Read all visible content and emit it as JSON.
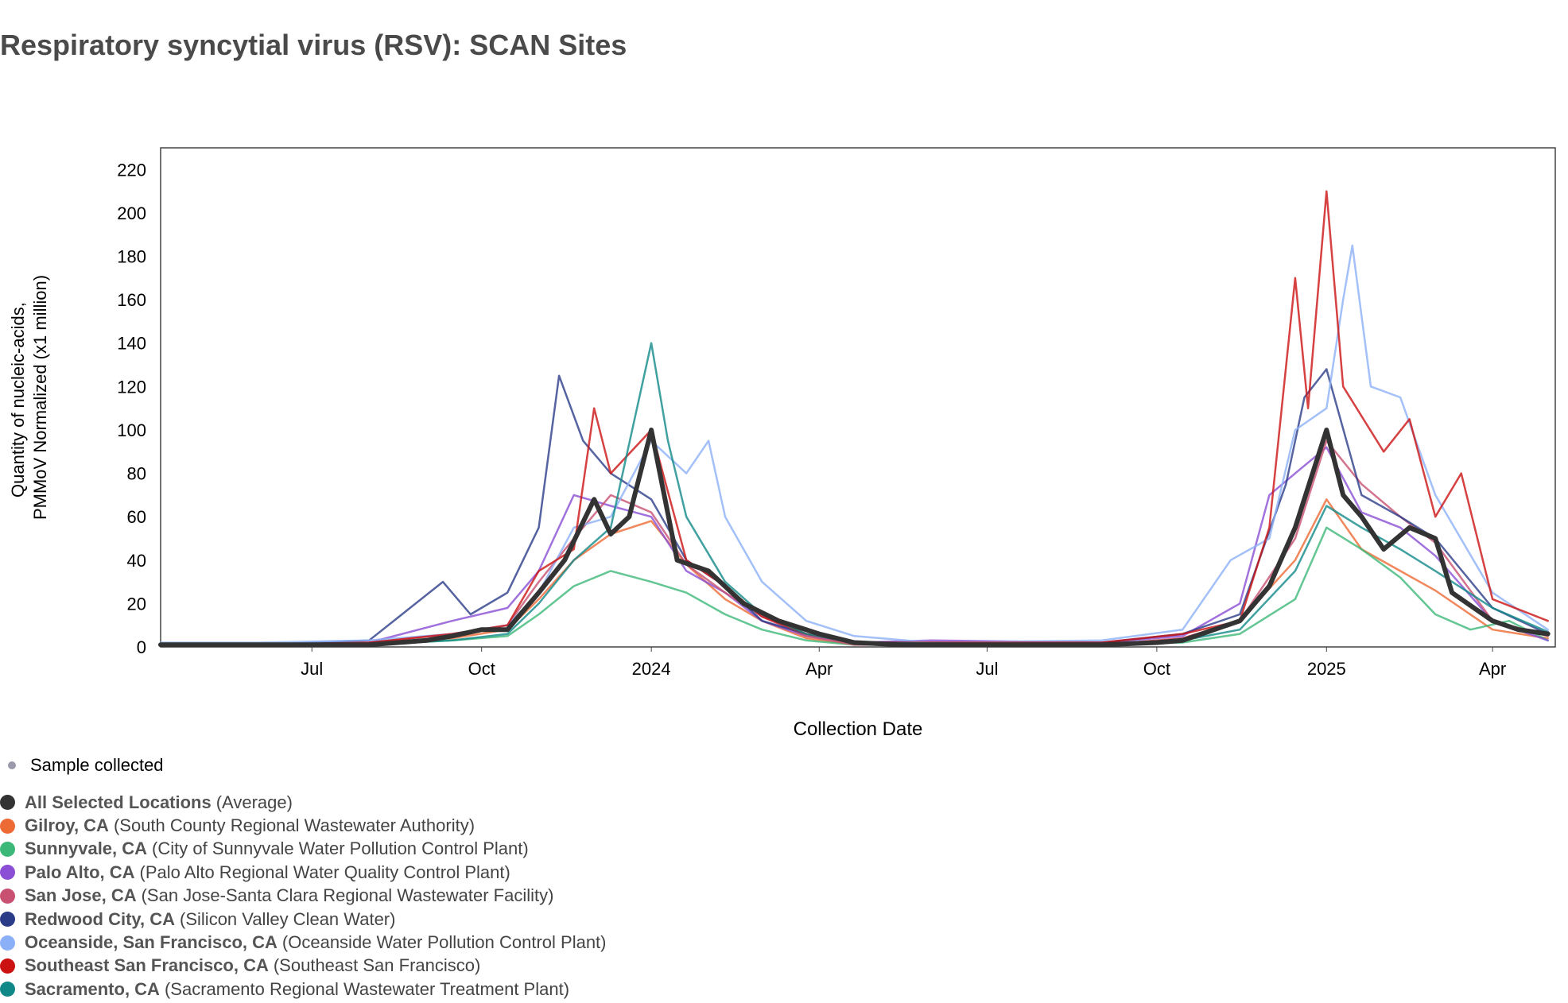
{
  "page_title": "Respiratory syncytial virus (RSV): SCAN Sites",
  "sample_legend": "Sample collected",
  "legend": [
    {
      "name": "All Selected Locations",
      "desc": "(Average)",
      "color": "#333333"
    },
    {
      "name": "Gilroy, CA",
      "desc": "(South County Regional Wastewater Authority)",
      "color": "#ee6a35"
    },
    {
      "name": "Sunnyvale, CA",
      "desc": "(City of Sunnyvale Water Pollution Control Plant)",
      "color": "#3cb878"
    },
    {
      "name": "Palo Alto, CA",
      "desc": "(Palo Alto Regional Water Quality Control Plant)",
      "color": "#8a4fd4"
    },
    {
      "name": "San Jose, CA",
      "desc": "(San Jose-Santa Clara Regional Wastewater Facility)",
      "color": "#c85070"
    },
    {
      "name": "Redwood City, CA",
      "desc": "(Silicon Valley Clean Water)",
      "color": "#2a3c88"
    },
    {
      "name": "Oceanside, San Francisco, CA",
      "desc": "(Oceanside Water Pollution Control Plant)",
      "color": "#8cb0f8"
    },
    {
      "name": "Southeast San Francisco, CA",
      "desc": "(Southeast San Francisco)",
      "color": "#cc1111"
    },
    {
      "name": "Sacramento, CA",
      "desc": "(Sacramento Regional Wastewater Treatment Plant)",
      "color": "#118888"
    }
  ],
  "chart_data": {
    "type": "line",
    "title": "Respiratory syncytial virus (RSV): SCAN Sites",
    "xlabel": "Collection Date",
    "ylabel": [
      "Quantity of nucleic-acids,",
      "PMMoV Normalized (x1 million)"
    ],
    "x_range": [
      "2023-04-10",
      "2025-05-05"
    ],
    "ylim": [
      0,
      230
    ],
    "y_ticks": [
      0,
      20,
      40,
      60,
      80,
      100,
      120,
      140,
      160,
      180,
      200,
      220
    ],
    "x_ticks": [
      {
        "date": "2023-07-01",
        "label": "Jul"
      },
      {
        "date": "2023-10-01",
        "label": "Oct"
      },
      {
        "date": "2024-01-01",
        "label": "2024"
      },
      {
        "date": "2024-04-01",
        "label": "Apr"
      },
      {
        "date": "2024-07-01",
        "label": "Jul"
      },
      {
        "date": "2024-10-01",
        "label": "Oct"
      },
      {
        "date": "2025-01-01",
        "label": "2025"
      },
      {
        "date": "2025-04-01",
        "label": "Apr"
      }
    ],
    "series": [
      {
        "name": "Gilroy, CA",
        "color": "#ee6a35",
        "points": [
          [
            "2023-04-10",
            1
          ],
          [
            "2023-06-01",
            1
          ],
          [
            "2023-08-01",
            2
          ],
          [
            "2023-09-15",
            4
          ],
          [
            "2023-10-15",
            8
          ],
          [
            "2023-11-01",
            22
          ],
          [
            "2023-11-20",
            40
          ],
          [
            "2023-12-10",
            52
          ],
          [
            "2024-01-01",
            58
          ],
          [
            "2024-01-20",
            38
          ],
          [
            "2024-02-10",
            22
          ],
          [
            "2024-03-01",
            12
          ],
          [
            "2024-03-25",
            4
          ],
          [
            "2024-04-20",
            1
          ],
          [
            "2024-09-01",
            1
          ],
          [
            "2024-10-15",
            4
          ],
          [
            "2024-11-15",
            12
          ],
          [
            "2024-12-15",
            40
          ],
          [
            "2025-01-01",
            68
          ],
          [
            "2025-01-20",
            45
          ],
          [
            "2025-02-10",
            35
          ],
          [
            "2025-03-01",
            26
          ],
          [
            "2025-04-01",
            8
          ],
          [
            "2025-05-01",
            4
          ]
        ]
      },
      {
        "name": "Sunnyvale, CA",
        "color": "#3cb878",
        "points": [
          [
            "2023-04-10",
            1
          ],
          [
            "2023-06-01",
            1
          ],
          [
            "2023-08-01",
            1
          ],
          [
            "2023-09-15",
            3
          ],
          [
            "2023-10-15",
            5
          ],
          [
            "2023-11-01",
            15
          ],
          [
            "2023-11-20",
            28
          ],
          [
            "2023-12-10",
            35
          ],
          [
            "2024-01-01",
            30
          ],
          [
            "2024-01-20",
            25
          ],
          [
            "2024-02-10",
            15
          ],
          [
            "2024-03-01",
            8
          ],
          [
            "2024-03-25",
            3
          ],
          [
            "2024-04-20",
            1
          ],
          [
            "2024-09-01",
            1
          ],
          [
            "2024-10-15",
            2
          ],
          [
            "2024-11-15",
            6
          ],
          [
            "2024-12-15",
            22
          ],
          [
            "2025-01-01",
            55
          ],
          [
            "2025-01-20",
            45
          ],
          [
            "2025-02-10",
            32
          ],
          [
            "2025-03-01",
            15
          ],
          [
            "2025-03-20",
            8
          ],
          [
            "2025-04-10",
            12
          ],
          [
            "2025-05-01",
            3
          ]
        ]
      },
      {
        "name": "Palo Alto, CA",
        "color": "#8a4fd4",
        "points": [
          [
            "2023-04-10",
            1
          ],
          [
            "2023-06-01",
            1
          ],
          [
            "2023-08-01",
            2
          ],
          [
            "2023-09-15",
            12
          ],
          [
            "2023-10-15",
            18
          ],
          [
            "2023-11-01",
            35
          ],
          [
            "2023-11-20",
            70
          ],
          [
            "2023-12-10",
            65
          ],
          [
            "2024-01-01",
            60
          ],
          [
            "2024-01-20",
            35
          ],
          [
            "2024-02-10",
            25
          ],
          [
            "2024-03-01",
            12
          ],
          [
            "2024-03-25",
            5
          ],
          [
            "2024-04-20",
            2
          ],
          [
            "2024-06-01",
            3
          ],
          [
            "2024-09-01",
            2
          ],
          [
            "2024-10-15",
            5
          ],
          [
            "2024-11-15",
            20
          ],
          [
            "2024-12-01",
            70
          ],
          [
            "2024-12-15",
            80
          ],
          [
            "2025-01-01",
            92
          ],
          [
            "2025-01-20",
            62
          ],
          [
            "2025-02-10",
            55
          ],
          [
            "2025-03-01",
            42
          ],
          [
            "2025-04-01",
            12
          ],
          [
            "2025-05-01",
            3
          ]
        ]
      },
      {
        "name": "San Jose, CA",
        "color": "#c85070",
        "points": [
          [
            "2023-04-10",
            1
          ],
          [
            "2023-06-01",
            1
          ],
          [
            "2023-08-01",
            2
          ],
          [
            "2023-09-15",
            6
          ],
          [
            "2023-10-15",
            10
          ],
          [
            "2023-11-01",
            30
          ],
          [
            "2023-11-20",
            50
          ],
          [
            "2023-12-10",
            70
          ],
          [
            "2024-01-01",
            62
          ],
          [
            "2024-01-20",
            38
          ],
          [
            "2024-02-10",
            25
          ],
          [
            "2024-03-01",
            14
          ],
          [
            "2024-03-25",
            5
          ],
          [
            "2024-04-20",
            1
          ],
          [
            "2024-09-01",
            1
          ],
          [
            "2024-10-15",
            4
          ],
          [
            "2024-11-15",
            12
          ],
          [
            "2024-12-15",
            50
          ],
          [
            "2025-01-01",
            95
          ],
          [
            "2025-01-20",
            75
          ],
          [
            "2025-02-10",
            60
          ],
          [
            "2025-03-01",
            48
          ],
          [
            "2025-04-01",
            12
          ],
          [
            "2025-05-01",
            5
          ]
        ]
      },
      {
        "name": "Redwood City, CA",
        "color": "#2a3c88",
        "points": [
          [
            "2023-04-10",
            1
          ],
          [
            "2023-06-01",
            1
          ],
          [
            "2023-08-01",
            3
          ],
          [
            "2023-09-10",
            30
          ],
          [
            "2023-09-25",
            15
          ],
          [
            "2023-10-15",
            25
          ],
          [
            "2023-11-01",
            55
          ],
          [
            "2023-11-12",
            125
          ],
          [
            "2023-11-25",
            95
          ],
          [
            "2023-12-10",
            80
          ],
          [
            "2024-01-01",
            68
          ],
          [
            "2024-01-20",
            40
          ],
          [
            "2024-02-10",
            28
          ],
          [
            "2024-03-01",
            12
          ],
          [
            "2024-03-25",
            6
          ],
          [
            "2024-04-20",
            2
          ],
          [
            "2024-09-01",
            2
          ],
          [
            "2024-10-15",
            6
          ],
          [
            "2024-11-15",
            15
          ],
          [
            "2024-12-10",
            75
          ],
          [
            "2024-12-20",
            115
          ],
          [
            "2025-01-01",
            128
          ],
          [
            "2025-01-20",
            70
          ],
          [
            "2025-02-10",
            60
          ],
          [
            "2025-03-01",
            50
          ],
          [
            "2025-04-01",
            18
          ],
          [
            "2025-05-01",
            6
          ]
        ]
      },
      {
        "name": "Oceanside, San Francisco, CA",
        "color": "#8cb0f8",
        "points": [
          [
            "2023-04-10",
            2
          ],
          [
            "2023-06-01",
            2
          ],
          [
            "2023-08-01",
            3
          ],
          [
            "2023-09-15",
            6
          ],
          [
            "2023-10-15",
            10
          ],
          [
            "2023-11-01",
            25
          ],
          [
            "2023-11-20",
            55
          ],
          [
            "2023-12-10",
            60
          ],
          [
            "2024-01-01",
            95
          ],
          [
            "2024-01-20",
            80
          ],
          [
            "2024-02-01",
            95
          ],
          [
            "2024-02-10",
            60
          ],
          [
            "2024-03-01",
            30
          ],
          [
            "2024-03-25",
            12
          ],
          [
            "2024-04-20",
            5
          ],
          [
            "2024-06-01",
            2
          ],
          [
            "2024-09-01",
            3
          ],
          [
            "2024-10-15",
            8
          ],
          [
            "2024-11-10",
            40
          ],
          [
            "2024-12-01",
            50
          ],
          [
            "2024-12-15",
            100
          ],
          [
            "2025-01-01",
            110
          ],
          [
            "2025-01-10",
            160
          ],
          [
            "2025-01-15",
            185
          ],
          [
            "2025-01-25",
            120
          ],
          [
            "2025-02-10",
            115
          ],
          [
            "2025-03-01",
            70
          ],
          [
            "2025-04-01",
            25
          ],
          [
            "2025-05-01",
            8
          ]
        ]
      },
      {
        "name": "Southeast San Francisco, CA",
        "color": "#cc1111",
        "points": [
          [
            "2023-04-10",
            1
          ],
          [
            "2023-06-01",
            1
          ],
          [
            "2023-08-01",
            2
          ],
          [
            "2023-09-15",
            6
          ],
          [
            "2023-10-15",
            10
          ],
          [
            "2023-11-01",
            35
          ],
          [
            "2023-11-20",
            45
          ],
          [
            "2023-12-01",
            110
          ],
          [
            "2023-12-10",
            80
          ],
          [
            "2024-01-01",
            100
          ],
          [
            "2024-01-20",
            40
          ],
          [
            "2024-02-10",
            28
          ],
          [
            "2024-03-01",
            14
          ],
          [
            "2024-03-25",
            6
          ],
          [
            "2024-04-20",
            2
          ],
          [
            "2024-09-01",
            2
          ],
          [
            "2024-10-15",
            6
          ],
          [
            "2024-11-15",
            12
          ],
          [
            "2024-12-01",
            55
          ],
          [
            "2024-12-15",
            170
          ],
          [
            "2024-12-22",
            110
          ],
          [
            "2025-01-01",
            210
          ],
          [
            "2025-01-10",
            120
          ],
          [
            "2025-02-01",
            90
          ],
          [
            "2025-02-15",
            105
          ],
          [
            "2025-03-01",
            60
          ],
          [
            "2025-03-15",
            80
          ],
          [
            "2025-04-01",
            22
          ],
          [
            "2025-05-01",
            12
          ]
        ]
      },
      {
        "name": "Sacramento, CA",
        "color": "#118888",
        "points": [
          [
            "2023-04-10",
            1
          ],
          [
            "2023-06-01",
            1
          ],
          [
            "2023-08-01",
            1
          ],
          [
            "2023-09-15",
            3
          ],
          [
            "2023-10-15",
            6
          ],
          [
            "2023-11-01",
            20
          ],
          [
            "2023-11-20",
            40
          ],
          [
            "2023-12-10",
            55
          ],
          [
            "2024-01-01",
            140
          ],
          [
            "2024-01-10",
            95
          ],
          [
            "2024-01-20",
            60
          ],
          [
            "2024-02-10",
            30
          ],
          [
            "2024-03-01",
            15
          ],
          [
            "2024-03-25",
            6
          ],
          [
            "2024-04-20",
            2
          ],
          [
            "2024-09-01",
            1
          ],
          [
            "2024-10-15",
            3
          ],
          [
            "2024-11-15",
            8
          ],
          [
            "2024-12-15",
            35
          ],
          [
            "2025-01-01",
            65
          ],
          [
            "2025-01-20",
            55
          ],
          [
            "2025-02-10",
            45
          ],
          [
            "2025-03-01",
            35
          ],
          [
            "2025-04-01",
            18
          ],
          [
            "2025-05-01",
            7
          ]
        ]
      },
      {
        "name": "All Selected Locations",
        "color": "#333333",
        "points": [
          [
            "2023-04-10",
            1
          ],
          [
            "2023-06-01",
            1
          ],
          [
            "2023-08-01",
            1
          ],
          [
            "2023-09-01",
            3
          ],
          [
            "2023-09-15",
            5
          ],
          [
            "2023-10-01",
            8
          ],
          [
            "2023-10-15",
            8
          ],
          [
            "2023-11-01",
            25
          ],
          [
            "2023-11-15",
            40
          ],
          [
            "2023-12-01",
            68
          ],
          [
            "2023-12-10",
            52
          ],
          [
            "2023-12-20",
            60
          ],
          [
            "2024-01-01",
            100
          ],
          [
            "2024-01-15",
            40
          ],
          [
            "2024-02-01",
            35
          ],
          [
            "2024-02-20",
            20
          ],
          [
            "2024-03-10",
            12
          ],
          [
            "2024-04-01",
            6
          ],
          [
            "2024-04-20",
            2
          ],
          [
            "2024-05-15",
            1
          ],
          [
            "2024-09-01",
            1
          ],
          [
            "2024-10-01",
            2
          ],
          [
            "2024-10-15",
            3
          ],
          [
            "2024-11-15",
            12
          ],
          [
            "2024-12-01",
            28
          ],
          [
            "2024-12-15",
            55
          ],
          [
            "2025-01-01",
            100
          ],
          [
            "2025-01-10",
            70
          ],
          [
            "2025-01-20",
            60
          ],
          [
            "2025-02-01",
            45
          ],
          [
            "2025-02-15",
            55
          ],
          [
            "2025-03-01",
            50
          ],
          [
            "2025-03-10",
            25
          ],
          [
            "2025-04-01",
            12
          ],
          [
            "2025-04-15",
            8
          ],
          [
            "2025-05-01",
            6
          ]
        ]
      }
    ]
  }
}
